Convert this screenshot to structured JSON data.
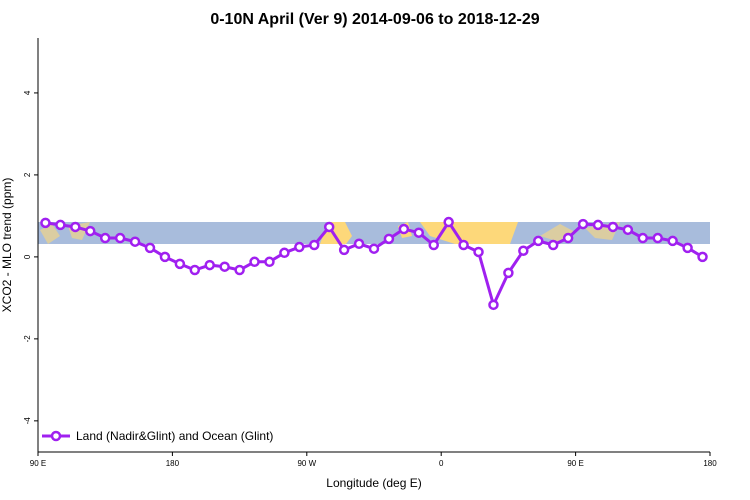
{
  "chart_data": {
    "type": "line",
    "title": "0-10N April (Ver 9)   2014-09-06 to 2018-12-29",
    "xlabel": "Longitude (deg E)",
    "ylabel": "XCO2 - MLO trend (ppm)",
    "x": [
      95,
      105,
      115,
      125,
      135,
      145,
      155,
      165,
      175,
      185,
      195,
      205,
      215,
      225,
      235,
      245,
      255,
      265,
      275,
      285,
      295,
      305,
      315,
      325,
      335,
      345,
      355,
      365,
      375,
      385,
      395,
      405,
      415,
      425,
      435,
      445,
      455,
      465,
      475,
      485,
      495,
      505,
      515,
      525,
      535
    ],
    "series": [
      {
        "name": "Land (Nadir&Glint) and Ocean (Glint)",
        "color": "#a020f0",
        "values": [
          0.83,
          0.78,
          0.73,
          0.63,
          0.46,
          0.46,
          0.37,
          0.22,
          0.0,
          -0.17,
          -0.32,
          -0.2,
          -0.24,
          -0.32,
          -0.12,
          -0.12,
          0.1,
          0.24,
          0.29,
          0.73,
          0.17,
          0.32,
          0.2,
          0.44,
          0.68,
          0.59,
          0.29,
          0.85,
          0.29,
          0.12,
          -1.17,
          -0.39,
          0.15,
          0.39,
          0.29,
          0.46,
          0.8,
          0.78,
          0.73,
          0.66,
          0.46,
          0.46,
          0.39,
          0.22,
          0.0
        ]
      }
    ],
    "xlim": [
      90,
      540
    ],
    "xticks": [
      {
        "value": 90,
        "label": "90 E"
      },
      180,
      {
        "value": 270,
        "label": "90 W"
      },
      {
        "value": 360,
        "label": "0"
      },
      {
        "value": 450,
        "label": "90 E"
      },
      {
        "value": 540,
        "label": "180"
      }
    ],
    "ylim": [
      -4.76,
      5.34
    ],
    "yticks": [
      -4,
      -2,
      0,
      2,
      4
    ],
    "legend": "bottom-left"
  }
}
